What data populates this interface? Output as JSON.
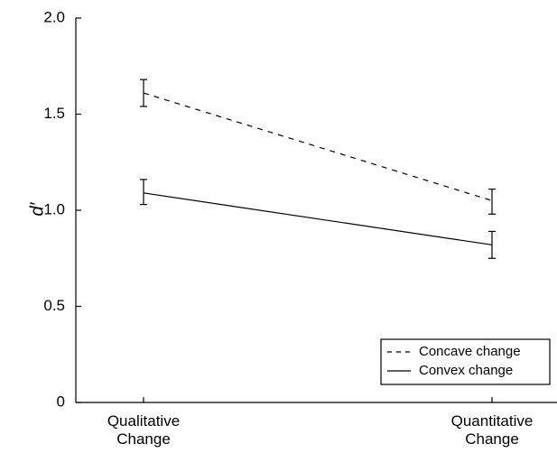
{
  "chart_data": {
    "type": "line",
    "categories": [
      "Qualitative\nChange",
      "Quantitative\nChange"
    ],
    "ylabel": "d′",
    "xlabel": "",
    "ylim": [
      0,
      2.0
    ],
    "yticks": [
      0,
      0.5,
      1.0,
      1.5,
      2.0
    ],
    "ytick_labels": [
      "0",
      "0.5",
      "1.0",
      "1.5",
      "2.0"
    ],
    "grid": false,
    "legend_position": "bottom-right",
    "series": [
      {
        "name": "Concave change",
        "values": [
          1.61,
          1.05
        ],
        "error": [
          [
            1.54,
            1.68
          ],
          [
            0.98,
            1.11
          ]
        ],
        "line_style": "dashed",
        "color": "#000000"
      },
      {
        "name": "Convex change",
        "values": [
          1.09,
          0.82
        ],
        "error": [
          [
            1.03,
            1.16
          ],
          [
            0.75,
            0.89
          ]
        ],
        "line_style": "solid",
        "color": "#000000"
      }
    ]
  }
}
